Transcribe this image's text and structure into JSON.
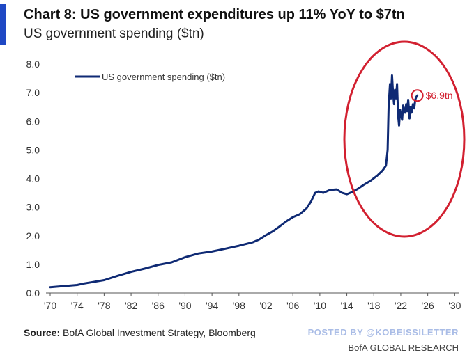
{
  "header": {
    "title": "Chart 8: US government expenditures up 11% YoY to $7tn",
    "subtitle": "US government spending ($tn)"
  },
  "footer": {
    "source_label": "Source:",
    "source_text": " BofA Global Investment Strategy, Bloomberg",
    "posted_by": "POSTED BY @KOBEISSILETTER",
    "brand": "BofA GLOBAL RESEARCH"
  },
  "colors": {
    "accent": "#1f48c4",
    "series": "#0f2a74",
    "annotation": "#d22030"
  },
  "chart_data": {
    "type": "line",
    "xlim": [
      1970,
      2031
    ],
    "ylim": [
      0,
      8
    ],
    "yticks": [
      0,
      1,
      2,
      3,
      4,
      5,
      6,
      7,
      8
    ],
    "ytick_labels": [
      "0.0",
      "1.0",
      "2.0",
      "3.0",
      "4.0",
      "5.0",
      "6.0",
      "7.0",
      "8.0"
    ],
    "xticks": [
      1970,
      1974,
      1978,
      1982,
      1986,
      1990,
      1994,
      1998,
      2002,
      2006,
      2010,
      2014,
      2018,
      2022,
      2026,
      2030
    ],
    "xtick_labels": [
      "'70",
      "'74",
      "'78",
      "'82",
      "'86",
      "'90",
      "'94",
      "'98",
      "'02",
      "'06",
      "'10",
      "'14",
      "'18",
      "'22",
      "'26",
      "'30"
    ],
    "grid": false,
    "legend_position": "top-left",
    "series": [
      {
        "name": "US government spending ($tn)",
        "points": [
          [
            1970,
            0.2
          ],
          [
            1972,
            0.24
          ],
          [
            1974,
            0.28
          ],
          [
            1975,
            0.33
          ],
          [
            1976,
            0.37
          ],
          [
            1978,
            0.45
          ],
          [
            1980,
            0.6
          ],
          [
            1982,
            0.74
          ],
          [
            1984,
            0.85
          ],
          [
            1986,
            0.98
          ],
          [
            1988,
            1.07
          ],
          [
            1990,
            1.25
          ],
          [
            1992,
            1.38
          ],
          [
            1994,
            1.45
          ],
          [
            1996,
            1.55
          ],
          [
            1998,
            1.65
          ],
          [
            2000,
            1.77
          ],
          [
            2001,
            1.87
          ],
          [
            2002,
            2.02
          ],
          [
            2003,
            2.15
          ],
          [
            2004,
            2.32
          ],
          [
            2005,
            2.5
          ],
          [
            2006,
            2.65
          ],
          [
            2007,
            2.75
          ],
          [
            2008,
            2.95
          ],
          [
            2008.7,
            3.2
          ],
          [
            2009.3,
            3.5
          ],
          [
            2009.8,
            3.55
          ],
          [
            2010.5,
            3.5
          ],
          [
            2011.5,
            3.6
          ],
          [
            2012.5,
            3.62
          ],
          [
            2013.3,
            3.5
          ],
          [
            2014,
            3.45
          ],
          [
            2014.7,
            3.52
          ],
          [
            2015.5,
            3.62
          ],
          [
            2016.5,
            3.78
          ],
          [
            2017.5,
            3.92
          ],
          [
            2018.5,
            4.1
          ],
          [
            2019.3,
            4.28
          ],
          [
            2019.8,
            4.45
          ],
          [
            2020.05,
            5.0
          ],
          [
            2020.2,
            6.5
          ],
          [
            2020.4,
            7.3
          ],
          [
            2020.55,
            6.8
          ],
          [
            2020.7,
            7.6
          ],
          [
            2020.85,
            7.0
          ],
          [
            2021.0,
            6.6
          ],
          [
            2021.15,
            7.1
          ],
          [
            2021.3,
            6.8
          ],
          [
            2021.45,
            7.3
          ],
          [
            2021.6,
            6.2
          ],
          [
            2021.75,
            5.85
          ],
          [
            2021.9,
            6.4
          ],
          [
            2022.05,
            6.2
          ],
          [
            2022.2,
            6.05
          ],
          [
            2022.35,
            6.55
          ],
          [
            2022.5,
            6.4
          ],
          [
            2022.65,
            6.3
          ],
          [
            2022.8,
            6.6
          ],
          [
            2022.95,
            6.35
          ],
          [
            2023.1,
            6.75
          ],
          [
            2023.3,
            6.1
          ],
          [
            2023.45,
            6.5
          ],
          [
            2023.6,
            6.3
          ],
          [
            2023.8,
            6.6
          ],
          [
            2024.0,
            6.45
          ],
          [
            2024.15,
            6.75
          ],
          [
            2024.3,
            6.85
          ],
          [
            2024.45,
            6.9
          ]
        ]
      }
    ],
    "annotation": {
      "label": "$6.9tn",
      "x": 2024.45,
      "y": 6.9
    }
  }
}
